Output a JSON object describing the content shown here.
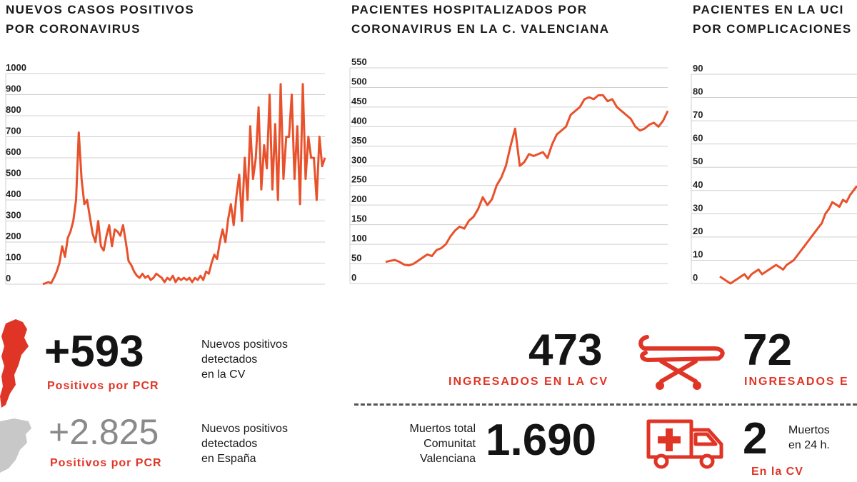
{
  "charts": {
    "cases": {
      "title_lines": [
        "NUEVOS CASOS POSITIVOS",
        "POR CORONAVIRUS"
      ],
      "yticks": [
        "1000",
        "900",
        "800",
        "700",
        "600",
        "500",
        "400",
        "300",
        "200",
        "100",
        "0"
      ]
    },
    "hosp": {
      "title_lines": [
        "PACIENTES HOSPITALIZADOS POR",
        "CORONAVIRUS EN LA C. VALENCIANA"
      ],
      "yticks": [
        "550",
        "500",
        "450",
        "400",
        "350",
        "300",
        "250",
        "200",
        "150",
        "100",
        "50",
        "0"
      ]
    },
    "uci": {
      "title_lines": [
        "PACIENTES EN LA UCI",
        "POR COMPLICACIONES"
      ],
      "yticks": [
        "90",
        "80",
        "70",
        "60",
        "50",
        "40",
        "30",
        "20",
        "10",
        "0"
      ]
    }
  },
  "stats": {
    "cv_positives": {
      "value": "+593",
      "label": "Positivos por PCR",
      "desc": [
        "Nuevos positivos",
        "detectados",
        "en la CV"
      ]
    },
    "es_positives": {
      "value": "+2.825",
      "label": "Positivos por PCR",
      "desc": [
        "Nuevos positivos",
        "detectados",
        "en España"
      ]
    },
    "hospitalized": {
      "value": "473",
      "label": "INGRESADOS EN LA CV"
    },
    "icu": {
      "value": "72",
      "label": "INGRESADOS E"
    },
    "deaths_total": {
      "value": "1.690",
      "desc": [
        "Muertos total",
        "Comunitat",
        "Valenciana"
      ]
    },
    "deaths_24h": {
      "value": "2",
      "desc": [
        "Muertos",
        "en 24 h."
      ],
      "label": "En la CV"
    }
  },
  "colors": {
    "accent": "#e03526",
    "line": "#e8512b",
    "grid": "#cfcfcf",
    "map_highlight": "#e03526",
    "map_grey": "#c8c8c8"
  },
  "icons": [
    "valencia-map-icon",
    "spain-map-icon",
    "stretcher-icon",
    "ambulance-icon"
  ],
  "chart_data": [
    {
      "type": "line",
      "title": "NUEVOS CASOS POSITIVOS POR CORONAVIRUS",
      "ylim": [
        0,
        1000
      ],
      "yticks": [
        0,
        100,
        200,
        300,
        400,
        500,
        600,
        700,
        800,
        900,
        1000
      ],
      "grid": true,
      "series": [
        {
          "values": [
            0,
            5,
            10,
            5,
            30,
            60,
            100,
            180,
            130,
            220,
            250,
            300,
            400,
            720,
            500,
            380,
            400,
            320,
            240,
            200,
            300,
            180,
            160,
            230,
            280,
            180,
            260,
            250,
            230,
            280,
            200,
            110,
            90,
            60,
            40,
            30,
            50,
            30,
            40,
            20,
            30,
            50,
            40,
            30,
            10,
            30,
            20,
            40,
            10,
            30,
            20,
            30,
            20,
            30,
            10,
            30,
            20,
            40,
            20,
            60,
            50,
            100,
            140,
            120,
            200,
            260,
            200,
            310,
            380,
            280,
            420,
            520,
            300,
            600,
            400,
            750,
            500,
            600,
            840,
            450,
            660,
            550,
            900,
            450,
            760,
            400,
            950,
            500,
            700,
            700,
            900,
            500,
            750,
            380,
            950,
            500,
            700,
            600,
            600,
            400,
            700,
            560,
            600
          ]
        }
      ]
    },
    {
      "type": "line",
      "title": "PACIENTES HOSPITALIZADOS POR CORONAVIRUS EN LA C. VALENCIANA",
      "ylim": [
        0,
        550
      ],
      "yticks": [
        0,
        50,
        100,
        150,
        200,
        250,
        300,
        350,
        400,
        450,
        500,
        550
      ],
      "grid": true,
      "series": [
        {
          "values": [
            55,
            58,
            60,
            55,
            48,
            46,
            50,
            58,
            66,
            74,
            70,
            85,
            90,
            100,
            120,
            135,
            145,
            140,
            160,
            170,
            190,
            220,
            200,
            215,
            250,
            270,
            300,
            350,
            395,
            300,
            310,
            330,
            325,
            330,
            335,
            320,
            355,
            380,
            390,
            400,
            430,
            440,
            450,
            470,
            475,
            470,
            480,
            480,
            465,
            470,
            450,
            440,
            430,
            420,
            400,
            390,
            395,
            405,
            410,
            400,
            415,
            440
          ]
        }
      ]
    },
    {
      "type": "line",
      "title": "PACIENTES EN LA UCI POR COMPLICACIONES",
      "ylim": [
        0,
        90
      ],
      "yticks": [
        0,
        10,
        20,
        30,
        40,
        50,
        60,
        70,
        80,
        90
      ],
      "grid": true,
      "series": [
        {
          "values": [
            3,
            2,
            1,
            0,
            1,
            2,
            3,
            4,
            2,
            4,
            5,
            6,
            4,
            5,
            6,
            7,
            8,
            7,
            6,
            8,
            9,
            10,
            12,
            14,
            16,
            18,
            20,
            22,
            24,
            26,
            30,
            32,
            35,
            34,
            33,
            36,
            35,
            38,
            40,
            42
          ]
        }
      ]
    }
  ]
}
